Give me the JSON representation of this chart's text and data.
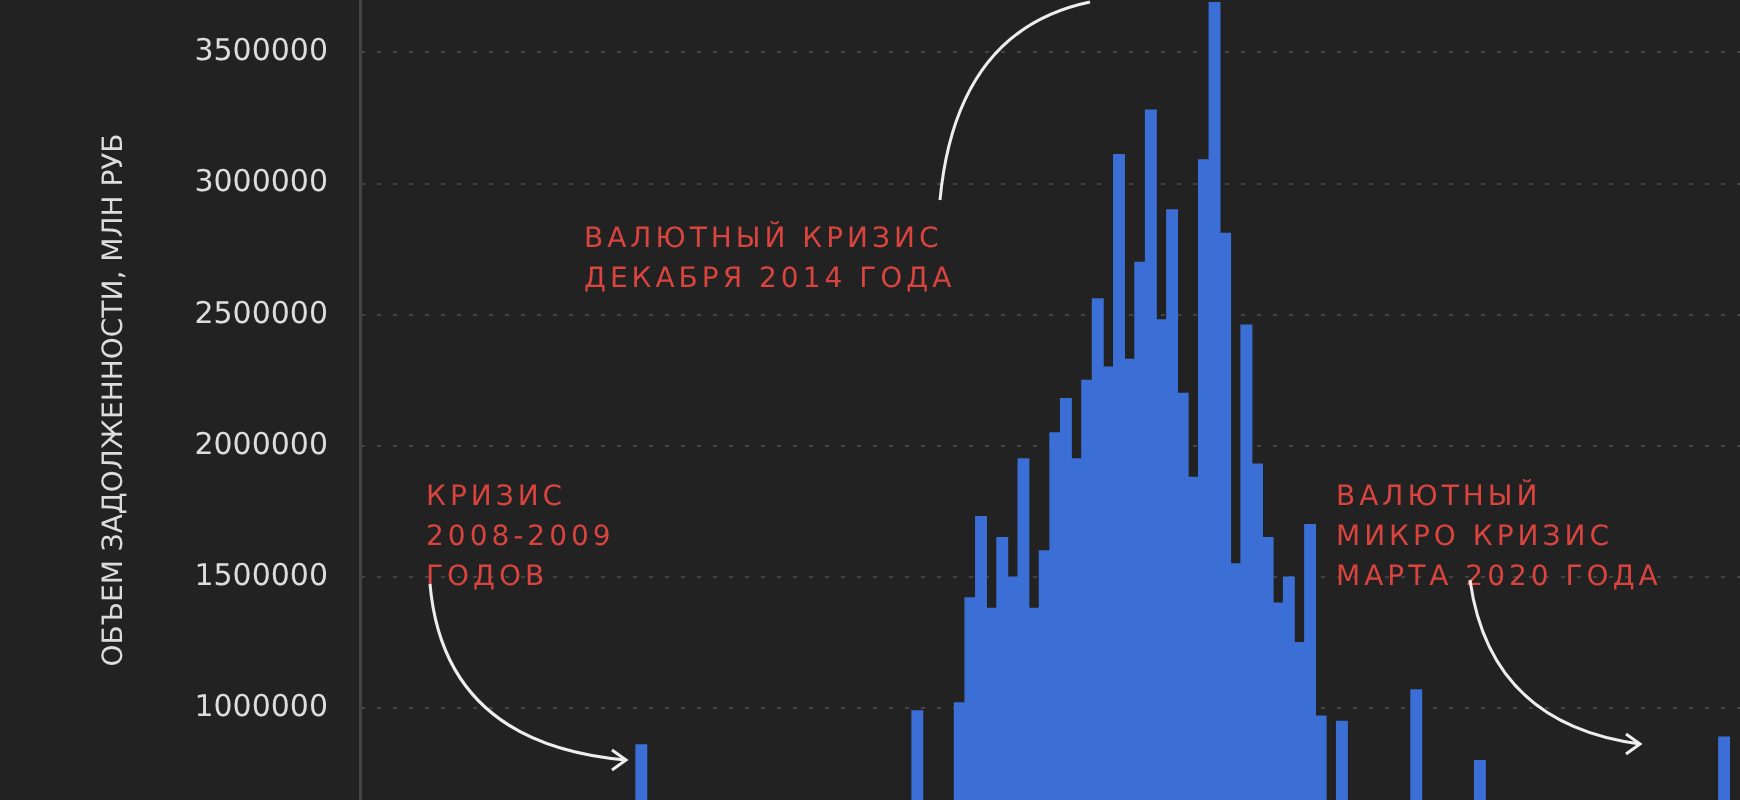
{
  "chart_data": {
    "type": "bar",
    "ylabel": "ОБЪЕМ ЗАДОЛЖЕННОСТИ, МЛН РУБ",
    "categories": [
      null,
      null,
      null,
      null,
      null,
      null,
      null,
      null,
      null,
      null,
      null,
      null,
      null,
      null,
      null,
      null,
      null,
      null,
      null,
      null,
      null,
      null,
      null,
      null,
      null,
      null,
      null,
      null,
      null,
      null,
      null,
      null,
      null,
      null,
      null,
      null,
      null,
      null,
      null,
      null,
      null,
      null,
      null,
      null,
      null,
      null,
      null,
      null,
      null,
      null,
      null,
      null,
      null,
      null,
      null,
      null,
      null,
      null,
      null,
      null,
      null,
      null,
      null,
      null,
      null,
      null,
      null,
      null,
      null,
      null,
      null,
      null,
      null,
      null,
      null,
      null,
      null,
      null,
      null,
      null,
      null,
      null,
      null,
      null,
      null,
      null,
      null,
      null,
      null,
      null,
      null,
      null,
      null,
      null,
      null,
      null,
      null,
      null,
      null,
      null,
      null,
      null,
      null,
      null,
      null,
      null,
      null,
      null,
      null,
      null,
      null,
      null,
      null,
      null,
      null,
      null,
      null,
      null,
      null,
      null,
      null,
      null,
      null,
      null,
      null,
      null,
      null,
      null,
      null,
      null
    ],
    "series": [
      {
        "color": "#3b6fd6",
        "values": [
          null,
          null,
          null,
          null,
          null,
          null,
          null,
          null,
          null,
          null,
          null,
          null,
          null,
          null,
          null,
          null,
          null,
          null,
          null,
          null,
          null,
          null,
          null,
          null,
          null,
          null,
          860000,
          null,
          null,
          null,
          null,
          null,
          null,
          null,
          null,
          null,
          null,
          null,
          null,
          null,
          null,
          null,
          null,
          null,
          null,
          null,
          null,
          null,
          null,
          null,
          null,
          null,
          990000,
          null,
          null,
          null,
          1020000,
          1420000,
          1730000,
          1380000,
          1650000,
          1500000,
          1950000,
          1380000,
          1600000,
          2050000,
          2180000,
          1950000,
          2250000,
          2560000,
          2300000,
          3110000,
          2330000,
          2700000,
          3280000,
          2480000,
          2900000,
          2200000,
          1880000,
          3090000,
          3690000,
          2810000,
          1550000,
          2460000,
          1930000,
          1650000,
          1400000,
          1500000,
          1250000,
          1700000,
          970000,
          null,
          950000,
          null,
          null,
          null,
          null,
          null,
          null,
          1070000,
          null,
          null,
          null,
          null,
          null,
          800000,
          null,
          null,
          null,
          null,
          null,
          null,
          null,
          null,
          null,
          null,
          null,
          null,
          null,
          null,
          null,
          null,
          null,
          null,
          null,
          null,
          null,
          null,
          890000,
          null
        ]
      }
    ],
    "ylim": [
      650000,
      3700000
    ],
    "yticks": [
      1000000,
      1500000,
      2000000,
      2500000,
      3000000,
      3500000
    ],
    "grid": "y",
    "legend": false,
    "annotations": [
      "КРИЗИС\n2008-2009\nГОДОВ",
      "ВАЛЮТНЫЙ КРИЗИС\nДЕКАБРЯ 2014 ГОДА",
      "ВАЛЮТНЫЙ\nМИКРО КРИЗИС\nМАРТА 2020 ГОДА"
    ]
  }
}
